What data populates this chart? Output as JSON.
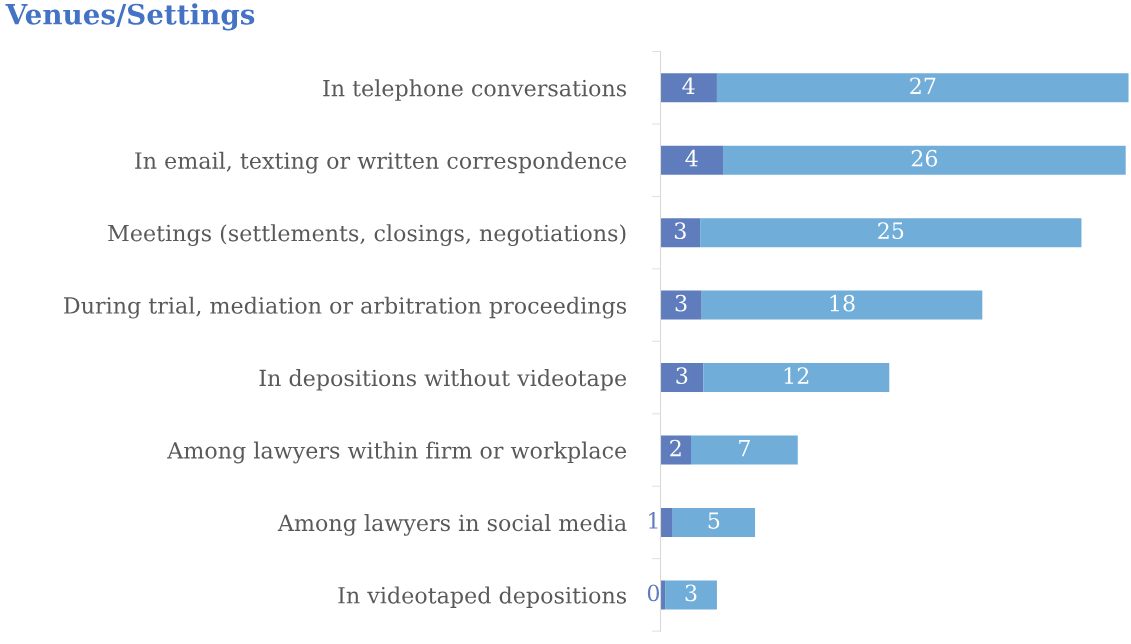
{
  "chart_data": {
    "type": "bar",
    "orientation": "horizontal",
    "stacked": true,
    "title": "Venues/Settings",
    "categories": [
      "In telephone conversations",
      "In email, texting or written correspondence",
      "Meetings (settlements, closings, negotiations)",
      "During trial, mediation or arbitration proceedings",
      "In depositions without videotape",
      "Among lawyers within firm or workplace",
      "Among lawyers in social media",
      "In videotaped depositions"
    ],
    "series": [
      {
        "color": "#5f7dbd",
        "values": [
          3.7,
          4.1,
          2.6,
          2.7,
          2.8,
          2.0,
          0.8,
          0.3
        ],
        "value_labels": [
          "4",
          "4",
          "3",
          "3",
          "3",
          "2",
          "1",
          "0"
        ]
      },
      {
        "color": "#70add9",
        "values": [
          27.0,
          26.4,
          25.0,
          18.4,
          12.2,
          7.0,
          5.4,
          3.4
        ],
        "value_labels": [
          "27",
          "26",
          "25",
          "18",
          "12",
          "7",
          "5",
          "3"
        ]
      }
    ],
    "xlim": [
      0,
      30.7
    ],
    "grid": false,
    "legend": false
  }
}
